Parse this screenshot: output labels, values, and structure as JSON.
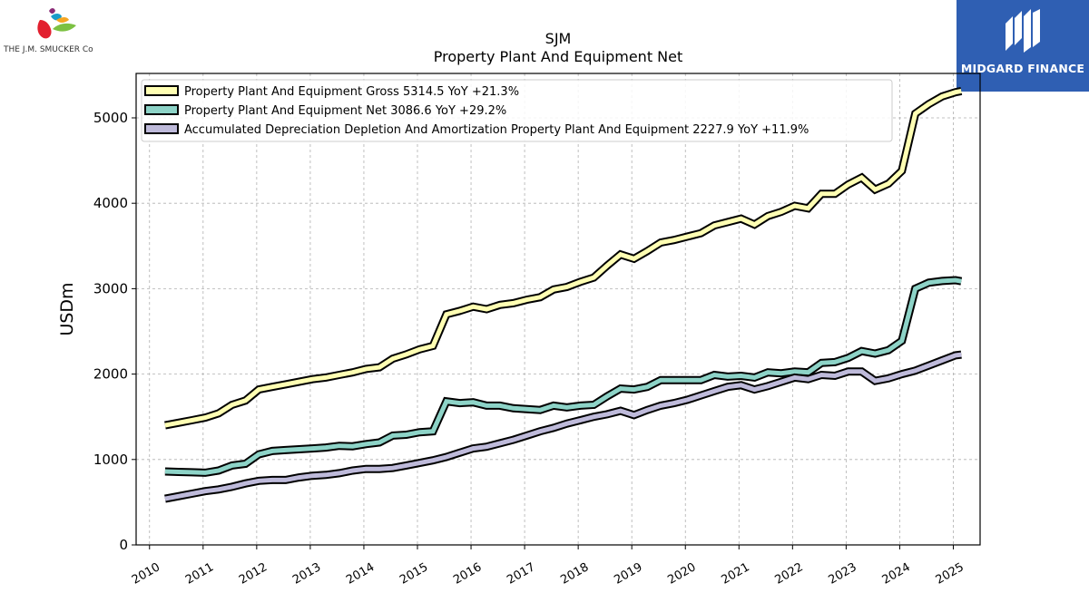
{
  "logos": {
    "company_text": "THE J.M. SMUCKER Co",
    "company_icon": "smucker-fruit-logo-icon",
    "publisher_text": "MIDGARD FINANCE",
    "publisher_icon": "midgard-m-logo-icon"
  },
  "chart_data": {
    "type": "line",
    "title": "SJM",
    "subtitle": "Property Plant And Equipment Net",
    "ylabel": "USDm",
    "xlabel": "",
    "xlim": [
      2009.75,
      2025.5
    ],
    "ylim": [
      0,
      5520
    ],
    "x_ticks": [
      2010,
      2011,
      2012,
      2013,
      2014,
      2015,
      2016,
      2017,
      2018,
      2019,
      2020,
      2021,
      2022,
      2023,
      2024,
      2025
    ],
    "y_ticks": [
      0,
      1000,
      2000,
      3000,
      4000,
      5000
    ],
    "grid": true,
    "legend_position": "top-left",
    "series": [
      {
        "name": "Property Plant And Equipment Gross",
        "legend_label": "Property Plant And Equipment Gross  5314.5 YoY +21.3%",
        "color": "#ffffb3",
        "points": [
          [
            2010.29,
            1400
          ],
          [
            2010.54,
            1430
          ],
          [
            2010.79,
            1460
          ],
          [
            2011.04,
            1490
          ],
          [
            2011.29,
            1540
          ],
          [
            2011.54,
            1640
          ],
          [
            2011.79,
            1690
          ],
          [
            2012.04,
            1820
          ],
          [
            2012.29,
            1850
          ],
          [
            2012.54,
            1880
          ],
          [
            2012.79,
            1910
          ],
          [
            2013.04,
            1940
          ],
          [
            2013.29,
            1960
          ],
          [
            2013.54,
            1990
          ],
          [
            2013.79,
            2020
          ],
          [
            2014.04,
            2060
          ],
          [
            2014.29,
            2080
          ],
          [
            2014.54,
            2180
          ],
          [
            2014.79,
            2230
          ],
          [
            2015.04,
            2290
          ],
          [
            2015.29,
            2330
          ],
          [
            2015.54,
            2700
          ],
          [
            2015.79,
            2740
          ],
          [
            2016.04,
            2790
          ],
          [
            2016.29,
            2760
          ],
          [
            2016.54,
            2810
          ],
          [
            2016.79,
            2830
          ],
          [
            2017.04,
            2870
          ],
          [
            2017.29,
            2900
          ],
          [
            2017.54,
            2990
          ],
          [
            2017.79,
            3020
          ],
          [
            2018.04,
            3080
          ],
          [
            2018.29,
            3130
          ],
          [
            2018.54,
            3270
          ],
          [
            2018.79,
            3400
          ],
          [
            2019.04,
            3350
          ],
          [
            2019.29,
            3440
          ],
          [
            2019.54,
            3540
          ],
          [
            2019.79,
            3570
          ],
          [
            2020.04,
            3610
          ],
          [
            2020.29,
            3650
          ],
          [
            2020.54,
            3740
          ],
          [
            2020.79,
            3780
          ],
          [
            2021.04,
            3820
          ],
          [
            2021.29,
            3750
          ],
          [
            2021.54,
            3850
          ],
          [
            2021.79,
            3900
          ],
          [
            2022.04,
            3970
          ],
          [
            2022.29,
            3940
          ],
          [
            2022.54,
            4110
          ],
          [
            2022.79,
            4110
          ],
          [
            2023.04,
            4220
          ],
          [
            2023.29,
            4300
          ],
          [
            2023.54,
            4160
          ],
          [
            2023.79,
            4230
          ],
          [
            2024.04,
            4380
          ],
          [
            2024.29,
            5050
          ],
          [
            2024.54,
            5160
          ],
          [
            2024.79,
            5250
          ],
          [
            2025.04,
            5300
          ],
          [
            2025.15,
            5314.5
          ]
        ]
      },
      {
        "name": "Property Plant And Equipment Net",
        "legend_label": "Property Plant And Equipment Net  3086.6 YoY +29.2%",
        "color": "#8dd3c7",
        "points": [
          [
            2010.29,
            860
          ],
          [
            2010.54,
            855
          ],
          [
            2010.79,
            850
          ],
          [
            2011.04,
            845
          ],
          [
            2011.29,
            870
          ],
          [
            2011.54,
            930
          ],
          [
            2011.79,
            950
          ],
          [
            2012.04,
            1060
          ],
          [
            2012.29,
            1100
          ],
          [
            2012.54,
            1110
          ],
          [
            2012.79,
            1120
          ],
          [
            2013.04,
            1130
          ],
          [
            2013.29,
            1140
          ],
          [
            2013.54,
            1160
          ],
          [
            2013.79,
            1155
          ],
          [
            2014.04,
            1180
          ],
          [
            2014.29,
            1200
          ],
          [
            2014.54,
            1280
          ],
          [
            2014.79,
            1290
          ],
          [
            2015.04,
            1320
          ],
          [
            2015.29,
            1330
          ],
          [
            2015.54,
            1680
          ],
          [
            2015.79,
            1660
          ],
          [
            2016.04,
            1670
          ],
          [
            2016.29,
            1630
          ],
          [
            2016.54,
            1630
          ],
          [
            2016.79,
            1600
          ],
          [
            2017.04,
            1590
          ],
          [
            2017.29,
            1580
          ],
          [
            2017.54,
            1630
          ],
          [
            2017.79,
            1610
          ],
          [
            2018.04,
            1630
          ],
          [
            2018.29,
            1640
          ],
          [
            2018.54,
            1740
          ],
          [
            2018.79,
            1830
          ],
          [
            2019.04,
            1820
          ],
          [
            2019.29,
            1850
          ],
          [
            2019.54,
            1930
          ],
          [
            2019.79,
            1930
          ],
          [
            2020.04,
            1930
          ],
          [
            2020.29,
            1930
          ],
          [
            2020.54,
            1990
          ],
          [
            2020.79,
            1970
          ],
          [
            2021.04,
            1980
          ],
          [
            2021.29,
            1960
          ],
          [
            2021.54,
            2020
          ],
          [
            2021.79,
            2010
          ],
          [
            2022.04,
            2030
          ],
          [
            2022.29,
            2020
          ],
          [
            2022.54,
            2130
          ],
          [
            2022.79,
            2140
          ],
          [
            2023.04,
            2190
          ],
          [
            2023.29,
            2270
          ],
          [
            2023.54,
            2240
          ],
          [
            2023.79,
            2280
          ],
          [
            2024.04,
            2390
          ],
          [
            2024.29,
            3000
          ],
          [
            2024.54,
            3070
          ],
          [
            2024.79,
            3090
          ],
          [
            2025.04,
            3100
          ],
          [
            2025.15,
            3086.6
          ]
        ]
      },
      {
        "name": "Accumulated Depreciation Depletion And Amortization Property Plant And Equipment",
        "legend_label": "Accumulated Depreciation Depletion And Amortization Property Plant And Equipment  2227.9 YoY +11.9%",
        "color": "#bebada",
        "points": [
          [
            2010.29,
            540
          ],
          [
            2010.54,
            570
          ],
          [
            2010.79,
            600
          ],
          [
            2011.04,
            630
          ],
          [
            2011.29,
            650
          ],
          [
            2011.54,
            680
          ],
          [
            2011.79,
            720
          ],
          [
            2012.04,
            750
          ],
          [
            2012.29,
            760
          ],
          [
            2012.54,
            760
          ],
          [
            2012.79,
            790
          ],
          [
            2013.04,
            810
          ],
          [
            2013.29,
            820
          ],
          [
            2013.54,
            840
          ],
          [
            2013.79,
            870
          ],
          [
            2014.04,
            890
          ],
          [
            2014.29,
            890
          ],
          [
            2014.54,
            900
          ],
          [
            2014.79,
            930
          ],
          [
            2015.04,
            960
          ],
          [
            2015.29,
            990
          ],
          [
            2015.54,
            1030
          ],
          [
            2015.79,
            1080
          ],
          [
            2016.04,
            1130
          ],
          [
            2016.29,
            1150
          ],
          [
            2016.54,
            1190
          ],
          [
            2016.79,
            1230
          ],
          [
            2017.04,
            1280
          ],
          [
            2017.29,
            1330
          ],
          [
            2017.54,
            1370
          ],
          [
            2017.79,
            1420
          ],
          [
            2018.04,
            1460
          ],
          [
            2018.29,
            1500
          ],
          [
            2018.54,
            1530
          ],
          [
            2018.79,
            1570
          ],
          [
            2019.04,
            1520
          ],
          [
            2019.29,
            1580
          ],
          [
            2019.54,
            1630
          ],
          [
            2019.79,
            1660
          ],
          [
            2020.04,
            1700
          ],
          [
            2020.29,
            1750
          ],
          [
            2020.54,
            1800
          ],
          [
            2020.79,
            1850
          ],
          [
            2021.04,
            1870
          ],
          [
            2021.29,
            1820
          ],
          [
            2021.54,
            1860
          ],
          [
            2021.79,
            1910
          ],
          [
            2022.04,
            1960
          ],
          [
            2022.29,
            1940
          ],
          [
            2022.54,
            1990
          ],
          [
            2022.79,
            1980
          ],
          [
            2023.04,
            2030
          ],
          [
            2023.29,
            2030
          ],
          [
            2023.54,
            1920
          ],
          [
            2023.79,
            1950
          ],
          [
            2024.04,
            2000
          ],
          [
            2024.29,
            2040
          ],
          [
            2024.54,
            2100
          ],
          [
            2024.79,
            2160
          ],
          [
            2025.04,
            2220
          ],
          [
            2025.15,
            2227.9
          ]
        ]
      }
    ]
  }
}
